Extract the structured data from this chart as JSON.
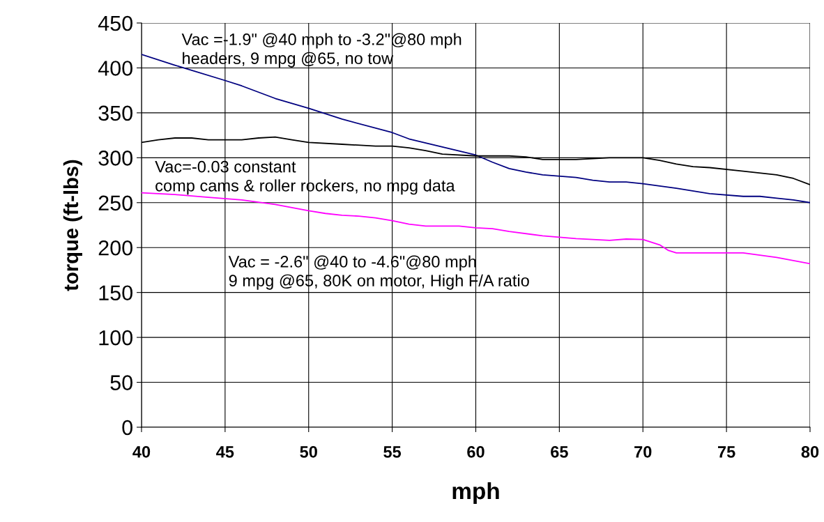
{
  "chart_data": {
    "type": "line",
    "xlabel": "mph",
    "ylabel": "torque (ft-lbs)",
    "xlim": [
      40,
      80
    ],
    "xticks": [
      40,
      45,
      50,
      55,
      60,
      65,
      70,
      75,
      80
    ],
    "ylim": [
      0,
      450
    ],
    "yticks": [
      0,
      50,
      100,
      150,
      200,
      250,
      300,
      350,
      400,
      450
    ],
    "grid": true,
    "marker": "none",
    "line_style": "solid",
    "series": [
      {
        "color": "#000080",
        "x": [
          40,
          42,
          45,
          46,
          48,
          50,
          52,
          55,
          56,
          58,
          60,
          61,
          62,
          63,
          64,
          66,
          67,
          68,
          69,
          70,
          72,
          74,
          76,
          77,
          78,
          79,
          80
        ],
        "values": [
          415,
          403,
          386,
          380,
          366,
          355,
          343,
          328,
          321,
          312,
          303,
          295,
          288,
          284,
          281,
          278,
          275,
          273,
          273,
          271,
          266,
          260,
          257,
          257,
          255,
          253,
          250
        ]
      },
      {
        "color": "#000000",
        "x": [
          40,
          41,
          42,
          43,
          44,
          46,
          47,
          48,
          49,
          50,
          52,
          54,
          55,
          56,
          57,
          58,
          60,
          62,
          63,
          64,
          66,
          68,
          70,
          71,
          72,
          73,
          74,
          76,
          78,
          79,
          80
        ],
        "values": [
          317,
          320,
          322,
          322,
          320,
          320,
          322,
          323,
          320,
          317,
          315,
          313,
          313,
          311,
          308,
          304,
          302,
          302,
          301,
          298,
          298,
          300,
          300,
          297,
          293,
          290,
          289,
          285,
          281,
          277,
          270
        ]
      },
      {
        "color": "#ff00ff",
        "x": [
          40,
          42,
          44,
          46,
          48,
          50,
          51,
          52,
          53,
          54,
          55,
          56,
          57,
          59,
          60,
          61,
          62,
          64,
          66,
          68,
          69,
          70,
          71,
          71.5,
          72,
          73,
          76,
          78,
          80
        ],
        "values": [
          261,
          259,
          256,
          253,
          248,
          241,
          238,
          236,
          235,
          233,
          230,
          226,
          224,
          224,
          222,
          221,
          218,
          213,
          210,
          208,
          209.5,
          209,
          203,
          197,
          194,
          194,
          194,
          189,
          182
        ]
      }
    ],
    "annotations": [
      "Vac =-1.9\" @40 mph to -3.2\"@80 mph\nheaders, 9 mpg @65, no tow",
      "Vac=-0.03 constant\ncomp cams & roller rockers, no mpg data",
      "Vac = -2.6\" @40 to -4.6\"@80 mph\n9 mpg @65, 80K on motor, High F/A ratio"
    ]
  }
}
